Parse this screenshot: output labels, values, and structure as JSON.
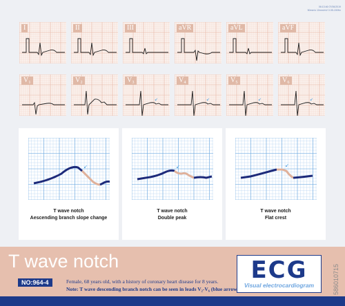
{
  "leads_row1": [
    "I",
    "II",
    "III",
    "aVR",
    "aVL",
    "aVF"
  ],
  "leads_row2": [
    "V₁",
    "V₂",
    "V₃",
    "V₄",
    "V₅",
    "V₆"
  ],
  "header_meta": "06:13:46 07/06/2019\n50mm/s 10mm/mV 0.05-150Hz",
  "details": [
    {
      "line1": "T wave notch",
      "line2": "Aescending branch slope change"
    },
    {
      "line1": "T wave notch",
      "line2": "Double peak"
    },
    {
      "line1": "T wave notch",
      "line2": "Flat crest"
    }
  ],
  "footer": {
    "title": "T wave notch",
    "badge": "NO:964-4",
    "line1": "Female, 68 years old, with a history of coronary heart disease for 8 years.",
    "line2": "Note: T wave descending branch notch can be seen in leads V₂-V₆ (blue arrow)."
  },
  "logo": {
    "main": "ECG",
    "sub": "Visual electrocardiogram"
  },
  "side_watermark": "586010715",
  "colors": {
    "grid_fine": "#f2d3c6",
    "grid_major": "#e7b5a2",
    "trace": "#1b1b1b",
    "detail_trace": "#1d2a7a",
    "notch": "#e0b19a",
    "brand": "#1d3a8a"
  }
}
